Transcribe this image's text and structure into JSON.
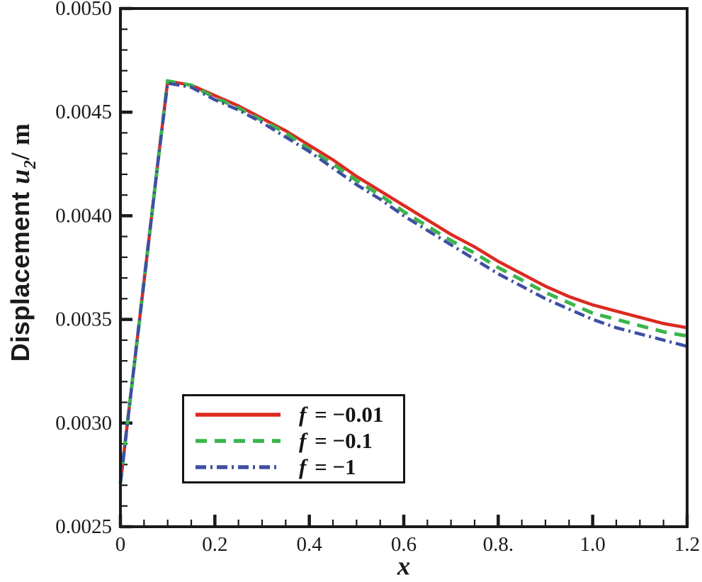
{
  "figure": {
    "background": "#ffffff",
    "axis_color": "#1a1a1a"
  },
  "chart_data": {
    "type": "line",
    "title": "",
    "xlabel": "x",
    "ylabel": "Displacement u2/ m",
    "ylabel_parts": {
      "prefix": "Displacement ",
      "math_var": "u",
      "math_sub": "2",
      "suffix": "/ m"
    },
    "xlim": [
      0,
      1.2
    ],
    "ylim": [
      0.0025,
      0.005
    ],
    "grid": false,
    "legend_position": "inside lower-left",
    "x_major_ticks": [
      0,
      0.2,
      0.4,
      0.6,
      0.8,
      1.0,
      1.2
    ],
    "x_tick_labels": [
      "0",
      "0.2",
      "0.4",
      "0.6",
      "0.8.",
      "1.0",
      "1.2"
    ],
    "x_minor_step": 0.05,
    "y_major_ticks": [
      0.0025,
      0.003,
      0.0035,
      0.004,
      0.0045,
      0.005
    ],
    "y_tick_labels": [
      "0.0025",
      "0.0030",
      "0.0035",
      "0.0040",
      "0.0045",
      "0.0050"
    ],
    "y_minor_step": 0.0001,
    "x": [
      0,
      0.02,
      0.04,
      0.06,
      0.08,
      0.1,
      0.15,
      0.2,
      0.25,
      0.3,
      0.35,
      0.4,
      0.45,
      0.5,
      0.55,
      0.6,
      0.65,
      0.7,
      0.75,
      0.8,
      0.85,
      0.9,
      0.95,
      1.0,
      1.05,
      1.1,
      1.15,
      1.2
    ],
    "series": [
      {
        "name": "f = −0.01",
        "label_var": "f",
        "label_rest": "= −0.01",
        "color": "#dc2a20",
        "style": "solid",
        "values": [
          0.00271,
          0.0031,
          0.00349,
          0.00388,
          0.00427,
          0.00465,
          0.00463,
          0.00458,
          0.00453,
          0.00447,
          0.00441,
          0.00434,
          0.00427,
          0.00419,
          0.00412,
          0.00405,
          0.00398,
          0.00391,
          0.00385,
          0.00378,
          0.00372,
          0.00366,
          0.00361,
          0.00357,
          0.00354,
          0.00351,
          0.00348,
          0.00346
        ]
      },
      {
        "name": "f = −0.1",
        "label_var": "f",
        "label_rest": "= −0.1",
        "color": "#3ab54a",
        "style": "dashed",
        "values": [
          0.00271,
          0.0031,
          0.00349,
          0.00388,
          0.00427,
          0.00465,
          0.00463,
          0.00457,
          0.00452,
          0.00446,
          0.0044,
          0.00432,
          0.00425,
          0.00417,
          0.0041,
          0.00402,
          0.00395,
          0.00388,
          0.00382,
          0.00375,
          0.00369,
          0.00363,
          0.00358,
          0.00353,
          0.0035,
          0.00347,
          0.00344,
          0.00342
        ]
      },
      {
        "name": "f = −1",
        "label_var": "f",
        "label_rest": "= −1",
        "color": "#3e4fa3",
        "style": "dash-dot",
        "values": [
          0.00271,
          0.0031,
          0.00349,
          0.00388,
          0.00427,
          0.00464,
          0.00462,
          0.00456,
          0.00451,
          0.00445,
          0.00438,
          0.00431,
          0.00423,
          0.00415,
          0.00408,
          0.004,
          0.00393,
          0.00386,
          0.00379,
          0.00372,
          0.00366,
          0.0036,
          0.00355,
          0.0035,
          0.00346,
          0.00343,
          0.0034,
          0.00337
        ]
      }
    ]
  }
}
